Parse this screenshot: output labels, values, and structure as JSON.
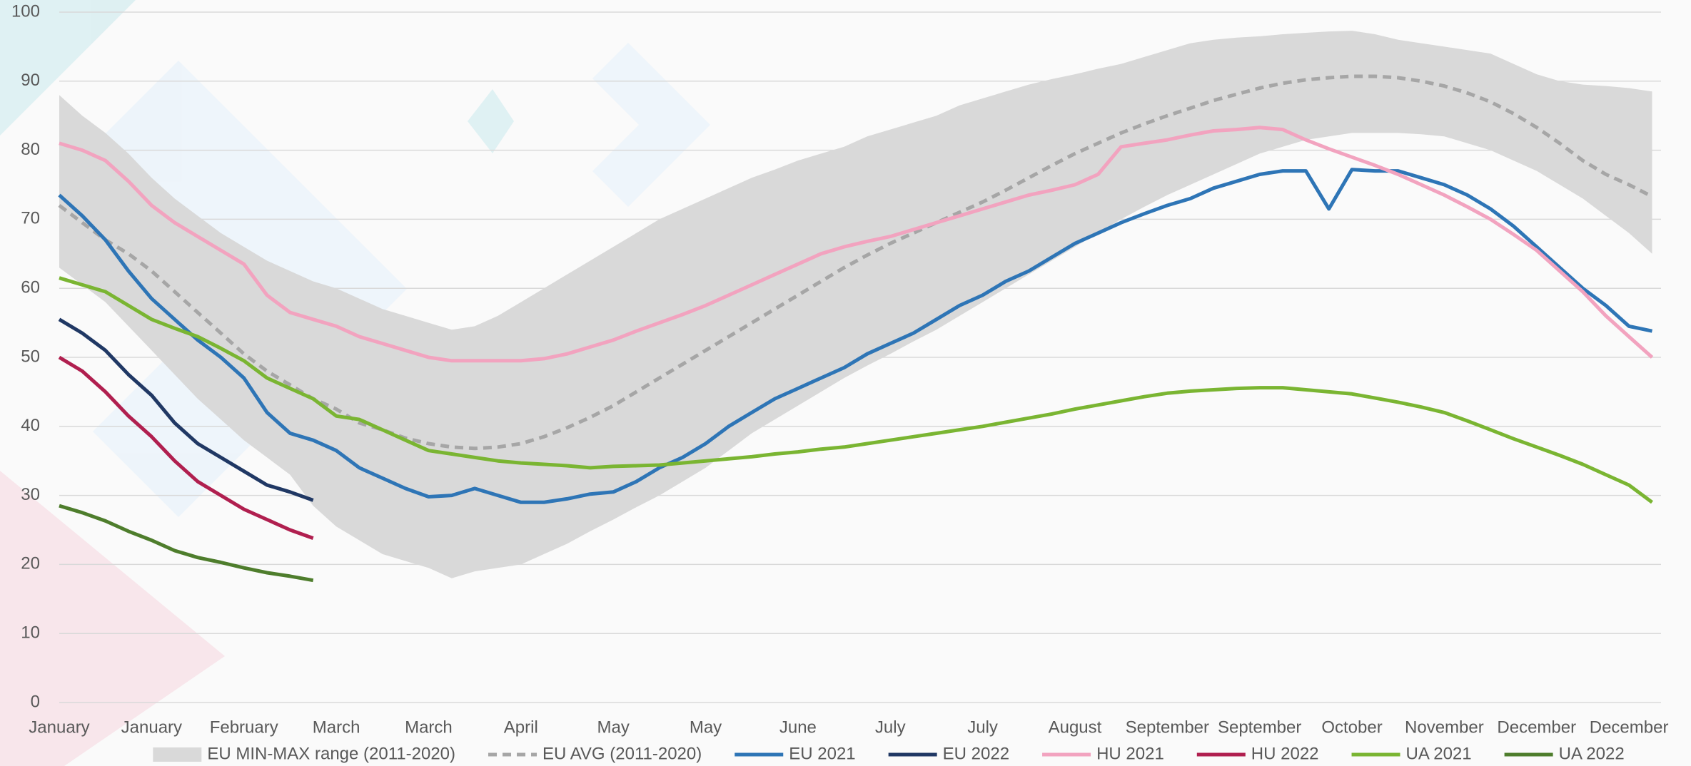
{
  "chart_data": {
    "type": "line",
    "categories": [
      "January",
      null,
      null,
      null,
      "January",
      null,
      null,
      null,
      "February",
      null,
      null,
      null,
      "March",
      null,
      null,
      null,
      "March",
      null,
      null,
      null,
      "April",
      null,
      null,
      null,
      "May",
      null,
      null,
      null,
      "May",
      null,
      null,
      null,
      "June",
      null,
      null,
      null,
      "July",
      null,
      null,
      null,
      "July",
      null,
      null,
      null,
      "August",
      null,
      null,
      null,
      "September",
      null,
      null,
      null,
      "September",
      null,
      null,
      null,
      "October",
      null,
      null,
      null,
      "November",
      null,
      null,
      null,
      "December",
      null,
      null,
      null,
      "December",
      null
    ],
    "ylim": [
      0,
      100
    ],
    "yticks": [
      0,
      10,
      20,
      30,
      40,
      50,
      60,
      70,
      80,
      90,
      100
    ],
    "grid": true,
    "legend": "bottom",
    "series": [
      {
        "name": "EU MIN-MAX range (2011-2020)",
        "color": "#d9d9d9",
        "type": "band",
        "low": [
          63,
          60.5,
          58,
          54.5,
          51,
          47.5,
          44,
          41,
          38,
          35.5,
          33,
          28.5,
          25.5,
          23.5,
          21.5,
          20.5,
          19.5,
          18,
          19,
          19.5,
          20,
          21.5,
          23,
          24.8,
          26.5,
          28.3,
          30,
          32,
          34,
          36.5,
          39,
          41,
          43,
          45,
          47,
          48.8,
          50.5,
          52.3,
          54,
          56,
          58,
          60,
          62,
          64,
          66,
          68,
          70,
          71.8,
          73.5,
          75,
          76.5,
          78,
          79.5,
          80.5,
          81.5,
          82,
          82.5,
          82.5,
          82.5,
          82.3,
          82,
          81,
          80,
          78.5,
          77,
          75,
          73,
          70.5,
          68,
          65
        ],
        "high": [
          88,
          85,
          82.5,
          79.5,
          76,
          73,
          70.5,
          68,
          66,
          64,
          62.5,
          61,
          60,
          58.5,
          57,
          56,
          55,
          54,
          54.5,
          56,
          58,
          60,
          62,
          64,
          66,
          68,
          70,
          71.5,
          73,
          74.5,
          76,
          77.2,
          78.5,
          79.5,
          80.5,
          82,
          83,
          84,
          85,
          86.5,
          87.5,
          88.5,
          89.5,
          90.3,
          91,
          91.8,
          92.5,
          93.5,
          94.5,
          95.5,
          96,
          96.3,
          96.5,
          96.8,
          97,
          97.2,
          97.3,
          96.8,
          96,
          95.5,
          95,
          94.5,
          94,
          92.5,
          91,
          90,
          89.5,
          89.3,
          89,
          88.5
        ]
      },
      {
        "name": "EU AVG (2011-2020)",
        "color": "#a6a6a6",
        "dash": true,
        "values": [
          72,
          69.5,
          67,
          65,
          62.5,
          59.5,
          56.5,
          53.5,
          50.5,
          48,
          46,
          44,
          42.5,
          40.5,
          39.5,
          38.3,
          37.5,
          37,
          36.8,
          37,
          37.5,
          38.5,
          39.8,
          41.3,
          43,
          45,
          47,
          49,
          51,
          53,
          55,
          57,
          59,
          61,
          63,
          64.8,
          66.5,
          68,
          69.5,
          71,
          72.5,
          74.2,
          76,
          77.8,
          79.5,
          81,
          82.5,
          83.8,
          85,
          86.1,
          87.2,
          88.1,
          89,
          89.7,
          90.2,
          90.5,
          90.7,
          90.7,
          90.5,
          90,
          89.3,
          88.3,
          87,
          85.3,
          83.3,
          81,
          78.5,
          76.5,
          75,
          73.3
        ]
      },
      {
        "name": "EU 2021",
        "color": "#2e75b6",
        "values": [
          73.5,
          70.5,
          67,
          62.5,
          58.5,
          55.5,
          52.5,
          50,
          47,
          42,
          39,
          38,
          36.5,
          34,
          32.5,
          31,
          29.8,
          30,
          31,
          30,
          29,
          29,
          29.5,
          30.2,
          30.5,
          32,
          34,
          35.5,
          37.5,
          40,
          42,
          44,
          45.5,
          47,
          48.5,
          50.5,
          52,
          53.5,
          55.5,
          57.5,
          59,
          61,
          62.5,
          64.5,
          66.5,
          68,
          69.5,
          70.8,
          72,
          73,
          74.5,
          75.5,
          76.5,
          77,
          77,
          71.5,
          77.2,
          77,
          77,
          76,
          75,
          73.5,
          71.5,
          69,
          66,
          63,
          60,
          57.5,
          54.5,
          53.8
        ]
      },
      {
        "name": "EU 2022",
        "color": "#203864",
        "values": [
          55.5,
          53.5,
          51,
          47.5,
          44.5,
          40.5,
          37.5,
          35.5,
          33.5,
          31.5,
          30.5,
          29.3,
          null,
          null,
          null,
          null,
          null,
          null,
          null,
          null,
          null,
          null,
          null,
          null,
          null,
          null,
          null,
          null,
          null,
          null,
          null,
          null,
          null,
          null,
          null,
          null,
          null,
          null,
          null,
          null,
          null,
          null,
          null,
          null,
          null,
          null,
          null,
          null,
          null,
          null,
          null,
          null,
          null,
          null,
          null,
          null,
          null,
          null,
          null,
          null,
          null,
          null,
          null,
          null,
          null,
          null,
          null,
          null,
          null,
          null
        ]
      },
      {
        "name": "HU 2021",
        "color": "#f2a3bf",
        "values": [
          81,
          80,
          78.5,
          75.5,
          72,
          69.5,
          67.5,
          65.5,
          63.5,
          59,
          56.5,
          55.5,
          54.5,
          53,
          52,
          51,
          50,
          49.5,
          49.5,
          49.5,
          49.5,
          49.8,
          50.5,
          51.5,
          52.5,
          53.8,
          55,
          56.2,
          57.5,
          59,
          60.5,
          62,
          63.5,
          65,
          66,
          66.8,
          67.5,
          68.5,
          69.5,
          70.5,
          71.5,
          72.5,
          73.5,
          74.2,
          75,
          76.5,
          80.5,
          81,
          81.5,
          82.2,
          82.8,
          83,
          83.3,
          83,
          81.5,
          80.2,
          79,
          77.8,
          76.5,
          75,
          73.5,
          71.8,
          70,
          67.8,
          65.5,
          62.5,
          59.5,
          56,
          53,
          50
        ]
      },
      {
        "name": "HU 2022",
        "color": "#b01f4f",
        "values": [
          50,
          48,
          45,
          41.5,
          38.5,
          35,
          32,
          30,
          28,
          26.5,
          25,
          23.8,
          null,
          null,
          null,
          null,
          null,
          null,
          null,
          null,
          null,
          null,
          null,
          null,
          null,
          null,
          null,
          null,
          null,
          null,
          null,
          null,
          null,
          null,
          null,
          null,
          null,
          null,
          null,
          null,
          null,
          null,
          null,
          null,
          null,
          null,
          null,
          null,
          null,
          null,
          null,
          null,
          null,
          null,
          null,
          null,
          null,
          null,
          null,
          null,
          null,
          null,
          null,
          null,
          null,
          null,
          null,
          null,
          null,
          null
        ]
      },
      {
        "name": "UA 2021",
        "color": "#7ab532",
        "values": [
          61.5,
          60.5,
          59.5,
          57.5,
          55.5,
          54.2,
          53,
          51.3,
          49.5,
          47,
          45.5,
          44,
          41.5,
          41,
          39.5,
          38,
          36.5,
          36,
          35.5,
          35,
          34.7,
          34.5,
          34.3,
          34,
          34.2,
          34.3,
          34.4,
          34.7,
          35,
          35.3,
          35.6,
          36,
          36.3,
          36.7,
          37,
          37.5,
          38,
          38.5,
          39,
          39.5,
          40,
          40.6,
          41.2,
          41.8,
          42.5,
          43.1,
          43.7,
          44.3,
          44.8,
          45.1,
          45.3,
          45.5,
          45.6,
          45.6,
          45.3,
          45,
          44.7,
          44.1,
          43.5,
          42.8,
          42,
          40.8,
          39.5,
          38.2,
          37,
          35.8,
          34.5,
          33,
          31.5,
          29
        ]
      },
      {
        "name": "UA 2022",
        "color": "#4e7d2c",
        "values": [
          28.5,
          27.5,
          26.3,
          24.8,
          23.5,
          22,
          21,
          20.3,
          19.5,
          18.8,
          18.3,
          17.7,
          null,
          null,
          null,
          null,
          null,
          null,
          null,
          null,
          null,
          null,
          null,
          null,
          null,
          null,
          null,
          null,
          null,
          null,
          null,
          null,
          null,
          null,
          null,
          null,
          null,
          null,
          null,
          null,
          null,
          null,
          null,
          null,
          null,
          null,
          null,
          null,
          null,
          null,
          null,
          null,
          null,
          null,
          null,
          null,
          null,
          null,
          null,
          null,
          null,
          null,
          null,
          null,
          null,
          null,
          null,
          null,
          null,
          null
        ]
      }
    ]
  }
}
